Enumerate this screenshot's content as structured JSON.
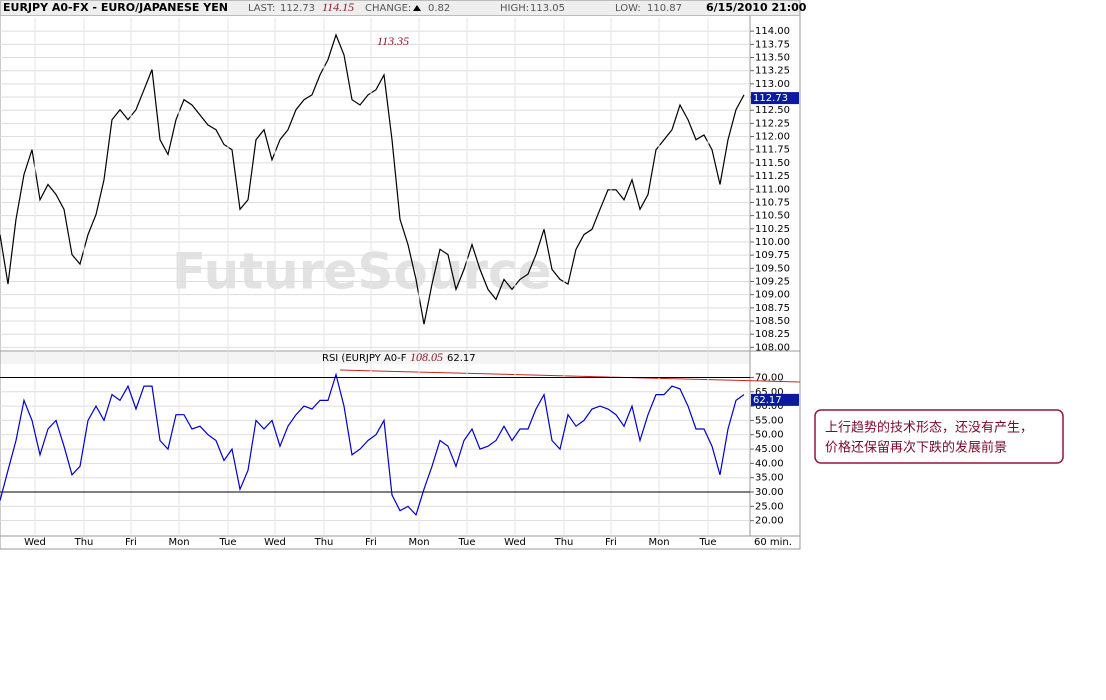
{
  "header": {
    "title": "EURJPY A0-FX - EURO/JAPANESE YEN",
    "last_label": "LAST:",
    "last": 112.73,
    "change_label": "CHANGE:",
    "change": 0.82,
    "high_label": "HIGH:",
    "high": 113.05,
    "low_label": "LOW:",
    "low": 110.87,
    "datetime": "6/15/2010 21:00"
  },
  "watermark": "FutureSource",
  "chart_data": [
    {
      "type": "line",
      "annotations": [
        "114.15",
        "113.35"
      ],
      "x": [
        0,
        4,
        8,
        12,
        16,
        20,
        24,
        28,
        32,
        36,
        40,
        44,
        48,
        52,
        56,
        60,
        64,
        68,
        72,
        76,
        80,
        84,
        88,
        92,
        96,
        100,
        104,
        108,
        112,
        116,
        120,
        124,
        128,
        132,
        136,
        140,
        144,
        148,
        152,
        156,
        160,
        164,
        168,
        172,
        176,
        180,
        184,
        188,
        192,
        196,
        200,
        204,
        208,
        212,
        216,
        220,
        224,
        228,
        232,
        236,
        240,
        244,
        248,
        252,
        256,
        260,
        264,
        268,
        272,
        276,
        280,
        284,
        288,
        292,
        296,
        300,
        304,
        308,
        312,
        316,
        320,
        324,
        328,
        332,
        336,
        340,
        344,
        348,
        352,
        356,
        360,
        364,
        368,
        372
      ],
      "xlim": [
        0,
        375
      ],
      "series": [
        {
          "name": "EURJPY A0-FX",
          "color": "#000000",
          "values": [
            110.14,
            109.2,
            110.43,
            111.28,
            111.75,
            110.8,
            111.09,
            110.9,
            110.62,
            109.76,
            109.58,
            110.14,
            110.52,
            111.18,
            112.32,
            112.51,
            112.32,
            112.51,
            112.89,
            113.27,
            111.94,
            111.66,
            112.32,
            112.7,
            112.6,
            112.41,
            112.22,
            112.13,
            111.85,
            111.75,
            110.62,
            110.8,
            111.94,
            112.13,
            111.56,
            111.94,
            112.13,
            112.51,
            112.7,
            112.79,
            113.17,
            113.46,
            113.93,
            113.55,
            112.7,
            112.6,
            112.79,
            112.89,
            113.17,
            111.94,
            110.43,
            109.95,
            109.29,
            108.44,
            109.2,
            109.86,
            109.76,
            109.1,
            109.48,
            109.95,
            109.48,
            109.1,
            108.91,
            109.29,
            109.1,
            109.29,
            109.39,
            109.76,
            110.24,
            109.48,
            109.29,
            109.2,
            109.86,
            110.14,
            110.24,
            110.62,
            110.99,
            110.99,
            110.8,
            111.18,
            110.62,
            110.9,
            111.75,
            111.94,
            112.13,
            112.6,
            112.32,
            111.94,
            112.03,
            111.75,
            111.09,
            111.94,
            112.51,
            112.79
          ]
        }
      ],
      "ylim": [
        107.95,
        114.25
      ],
      "yticks": [
        {
          "value": 108,
          "label": "108.00"
        },
        {
          "value": 108.25,
          "label": "108.25"
        },
        {
          "value": 108.5,
          "label": "108.50"
        },
        {
          "value": 108.75,
          "label": "108.75"
        },
        {
          "value": 109,
          "label": "109.00"
        },
        {
          "value": 109.25,
          "label": "109.25"
        },
        {
          "value": 109.5,
          "label": "109.50"
        },
        {
          "value": 109.75,
          "label": "109.75"
        },
        {
          "value": 110,
          "label": "110.00"
        },
        {
          "value": 110.25,
          "label": "110.25"
        },
        {
          "value": 110.5,
          "label": "110.50"
        },
        {
          "value": 110.75,
          "label": "110.75"
        },
        {
          "value": 111,
          "label": "111.00"
        },
        {
          "value": 111.25,
          "label": "111.25"
        },
        {
          "value": 111.5,
          "label": "111.50"
        },
        {
          "value": 111.75,
          "label": "111.75"
        },
        {
          "value": 112,
          "label": "112.00"
        },
        {
          "value": 112.25,
          "label": "112.25"
        },
        {
          "value": 112.5,
          "label": "112.50"
        },
        {
          "value": 112.75,
          "label": "112.75"
        },
        {
          "value": 113,
          "label": "113.00"
        },
        {
          "value": 113.25,
          "label": "113.25"
        },
        {
          "value": 113.5,
          "label": "113.50"
        },
        {
          "value": 113.75,
          "label": "113.75"
        },
        {
          "value": 114,
          "label": "114.00"
        }
      ],
      "grid": true
    },
    {
      "type": "line",
      "title": "RSI (EURJPY A0-F",
      "last": 62.17,
      "annotations": [
        "108.05"
      ],
      "x": [
        0,
        4,
        8,
        12,
        16,
        20,
        24,
        28,
        32,
        36,
        40,
        44,
        48,
        52,
        56,
        60,
        64,
        68,
        72,
        76,
        80,
        84,
        88,
        92,
        96,
        100,
        104,
        108,
        112,
        116,
        120,
        124,
        128,
        132,
        136,
        140,
        144,
        148,
        152,
        156,
        160,
        164,
        168,
        172,
        176,
        180,
        184,
        188,
        192,
        196,
        200,
        204,
        208,
        212,
        216,
        220,
        224,
        228,
        232,
        236,
        240,
        244,
        248,
        252,
        256,
        260,
        264,
        268,
        272,
        276,
        280,
        284,
        288,
        292,
        296,
        300,
        304,
        308,
        312,
        316,
        320,
        324,
        328,
        332,
        336,
        340,
        344,
        348,
        352,
        356,
        360,
        364,
        368,
        372
      ],
      "xlim": [
        0,
        375
      ],
      "series": [
        {
          "name": "RSI",
          "color": "#0000cc",
          "values": [
            27,
            37.6,
            48,
            62,
            55,
            43,
            52,
            55,
            46,
            36,
            39,
            55,
            60,
            55,
            64,
            62,
            67,
            59,
            67,
            67,
            48,
            45,
            57,
            57,
            52,
            53,
            50,
            48,
            41,
            45,
            31,
            37.6,
            55,
            52,
            55,
            46,
            53,
            57,
            60,
            59,
            62,
            62,
            71,
            60,
            43,
            45,
            48,
            50,
            55,
            29,
            23.5,
            25,
            22,
            31,
            39,
            48,
            46,
            39,
            48,
            52,
            45,
            46,
            48,
            53,
            48,
            52,
            52,
            59,
            64,
            48,
            45,
            57,
            53,
            55,
            59,
            60,
            59,
            57,
            53,
            60,
            48,
            57,
            64,
            64,
            67,
            66,
            60,
            52,
            52,
            46,
            36,
            52,
            62,
            64
          ]
        }
      ],
      "levels": [
        70,
        30
      ],
      "ylim": [
        15,
        74
      ],
      "yticks": [
        {
          "value": 20,
          "label": "20.00"
        },
        {
          "value": 25,
          "label": "25.00"
        },
        {
          "value": 30,
          "label": "30.00"
        },
        {
          "value": 35,
          "label": "35.00"
        },
        {
          "value": 40,
          "label": "40.00"
        },
        {
          "value": 45,
          "label": "45.00"
        },
        {
          "value": 50,
          "label": "50.00"
        },
        {
          "value": 55,
          "label": "55.00"
        },
        {
          "value": 60,
          "label": "60.00"
        },
        {
          "value": 65,
          "label": "65.00"
        },
        {
          "value": 70,
          "label": "70.00"
        }
      ],
      "xticks": [
        {
          "value": 17.5,
          "label": "Wed"
        },
        {
          "value": 42,
          "label": "Thu"
        },
        {
          "value": 65.5,
          "label": "Fri"
        },
        {
          "value": 89.5,
          "label": "Mon"
        },
        {
          "value": 114,
          "label": "Tue"
        },
        {
          "value": 137.5,
          "label": "Wed"
        },
        {
          "value": 162,
          "label": "Thu"
        },
        {
          "value": 185.5,
          "label": "Fri"
        },
        {
          "value": 209.5,
          "label": "Mon"
        },
        {
          "value": 233.5,
          "label": "Tue"
        },
        {
          "value": 257.5,
          "label": "Wed"
        },
        {
          "value": 282,
          "label": "Thu"
        },
        {
          "value": 305.5,
          "label": "Fri"
        },
        {
          "value": 329.5,
          "label": "Mon"
        },
        {
          "value": 354,
          "label": "Tue"
        }
      ],
      "x_label": "60 min.",
      "grid": true
    }
  ],
  "note": {
    "lines": [
      "上行趋势的技术形态，还没有产生，",
      "价格还保留再次下跌的发展前景"
    ]
  }
}
